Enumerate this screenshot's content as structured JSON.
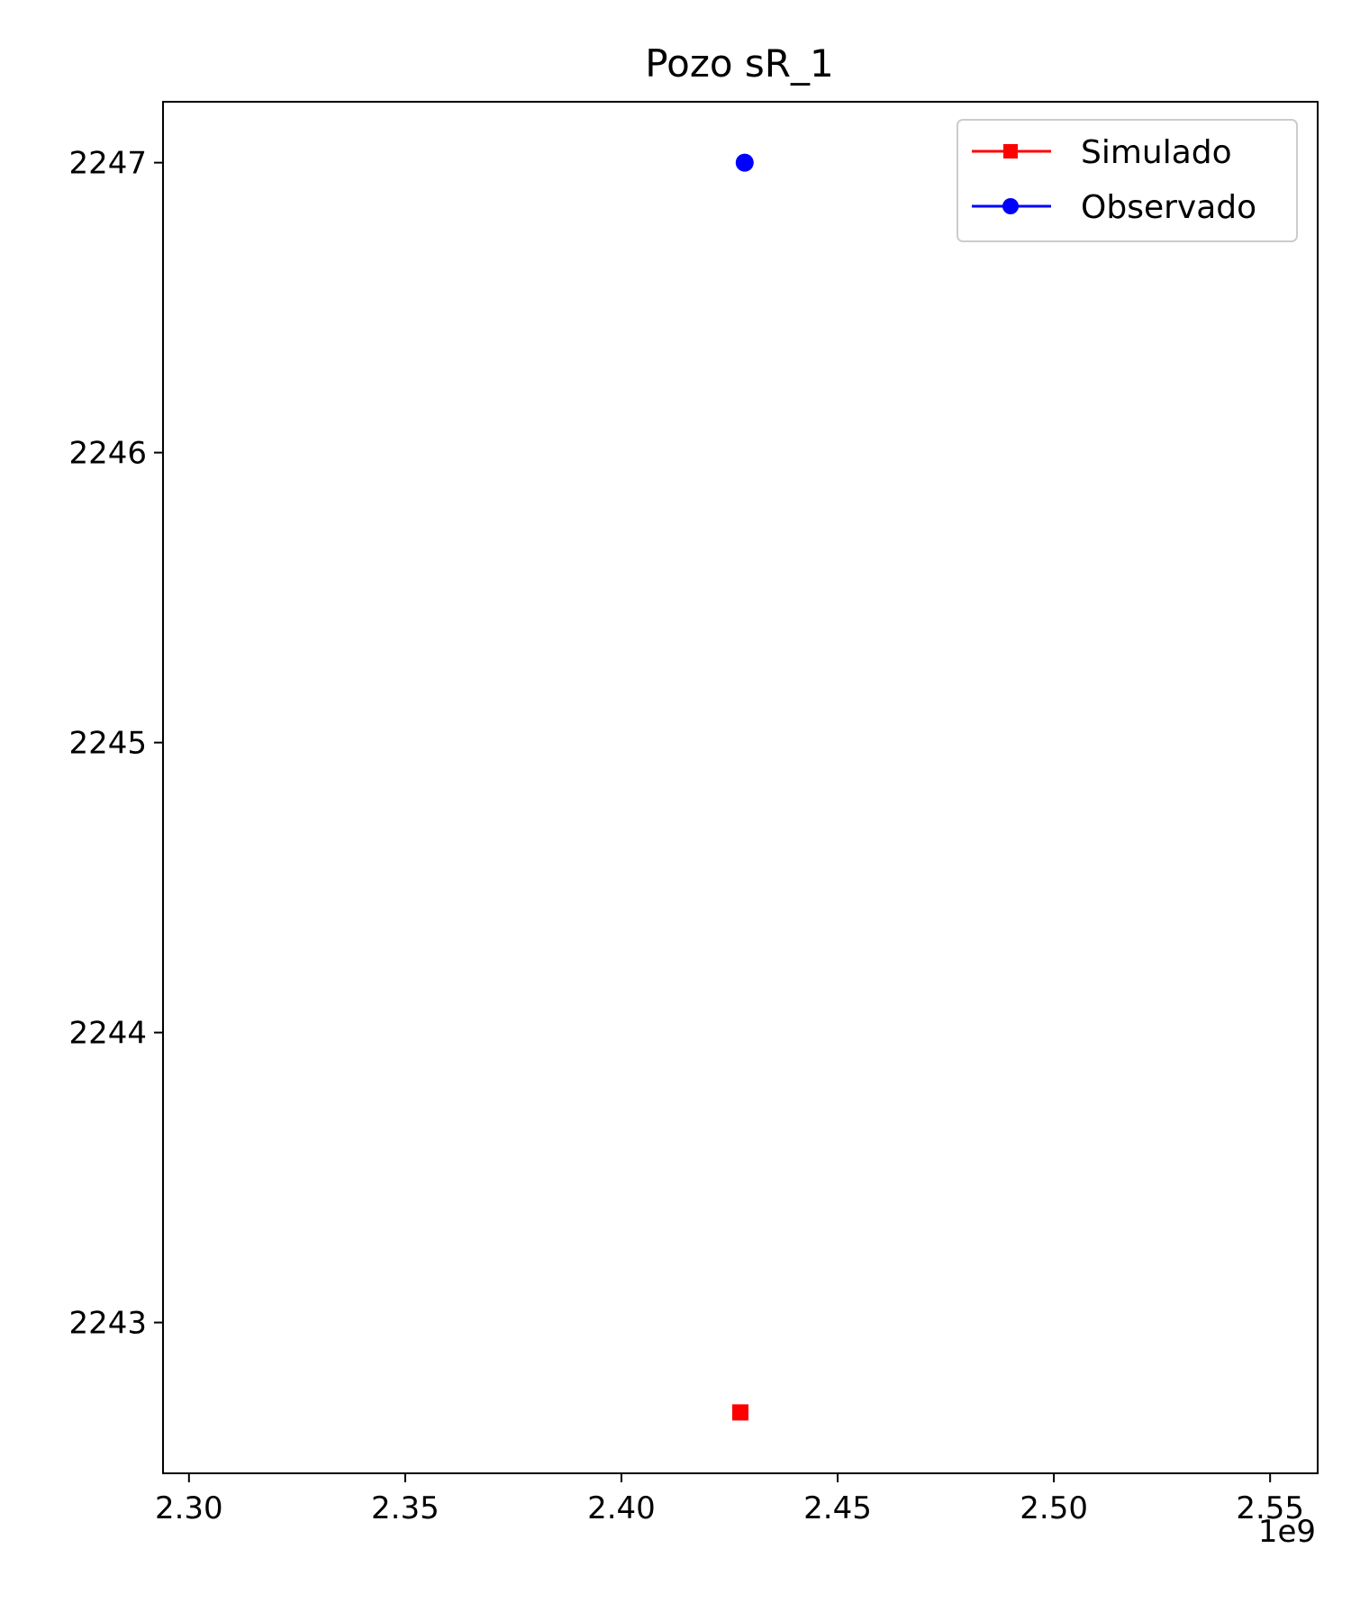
{
  "chart_data": {
    "type": "scatter",
    "title": "Pozo sR_1",
    "xlabel": "",
    "ylabel": "",
    "x_offset_label": "1e9",
    "x_scale_factor": 1000000000.0,
    "xlim": [
      2.294,
      2.561
    ],
    "ylim": [
      2242.48,
      2247.21
    ],
    "x_ticks": [
      2.3,
      2.35,
      2.4,
      2.45,
      2.5,
      2.55
    ],
    "x_tick_labels": [
      "2.30",
      "2.35",
      "2.40",
      "2.45",
      "2.50",
      "2.55"
    ],
    "y_ticks": [
      2243,
      2244,
      2245,
      2246,
      2247
    ],
    "y_tick_labels": [
      "2243",
      "2244",
      "2245",
      "2246",
      "2247"
    ],
    "grid": false,
    "legend_position": "top-right",
    "series": [
      {
        "name": "Simulado",
        "color": "#ff0000",
        "marker": "square",
        "points": [
          {
            "x": 2.4275,
            "y": 2242.69
          }
        ]
      },
      {
        "name": "Observado",
        "color": "#0000ff",
        "marker": "circle",
        "points": [
          {
            "x": 2.4285,
            "y": 2247.0
          }
        ]
      }
    ]
  }
}
